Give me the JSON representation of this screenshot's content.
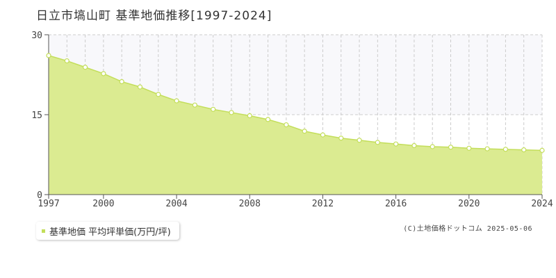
{
  "title": "日立市塙山町 基準地価推移[1997-2024]",
  "legend_label": "基準地価 平均坪単価(万円/坪)",
  "credit": "(C)土地価格ドットコム 2025-05-06",
  "colors": {
    "fill": "#dbeb91",
    "line": "#c3de5a",
    "grid": "#cccccc",
    "band": "#f8f8fb"
  },
  "chart_data": {
    "type": "area",
    "title": "日立市塙山町 基準地価推移[1997-2024]",
    "xlabel": "",
    "ylabel": "",
    "x": [
      1997,
      1998,
      1999,
      2000,
      2001,
      2002,
      2003,
      2004,
      2005,
      2006,
      2007,
      2008,
      2009,
      2010,
      2011,
      2012,
      2013,
      2014,
      2015,
      2016,
      2017,
      2018,
      2019,
      2020,
      2021,
      2022,
      2023,
      2024
    ],
    "series": [
      {
        "name": "基準地価 平均坪単価(万円/坪)",
        "values": [
          26.1,
          25.1,
          23.9,
          22.7,
          21.2,
          20.2,
          18.8,
          17.6,
          16.8,
          16.0,
          15.4,
          14.8,
          14.1,
          13.1,
          11.9,
          11.2,
          10.6,
          10.2,
          9.8,
          9.5,
          9.2,
          9.0,
          8.9,
          8.7,
          8.6,
          8.5,
          8.4,
          8.3
        ]
      }
    ],
    "xticks": [
      1997,
      2000,
      2004,
      2008,
      2012,
      2016,
      2020,
      2024
    ],
    "yticks": [
      0,
      15,
      30
    ],
    "xlim": [
      1997,
      2024
    ],
    "ylim": [
      0,
      30
    ],
    "grid": "dashed vertical per year, dashed horizontal at 15",
    "legend_position": "bottom-left"
  }
}
